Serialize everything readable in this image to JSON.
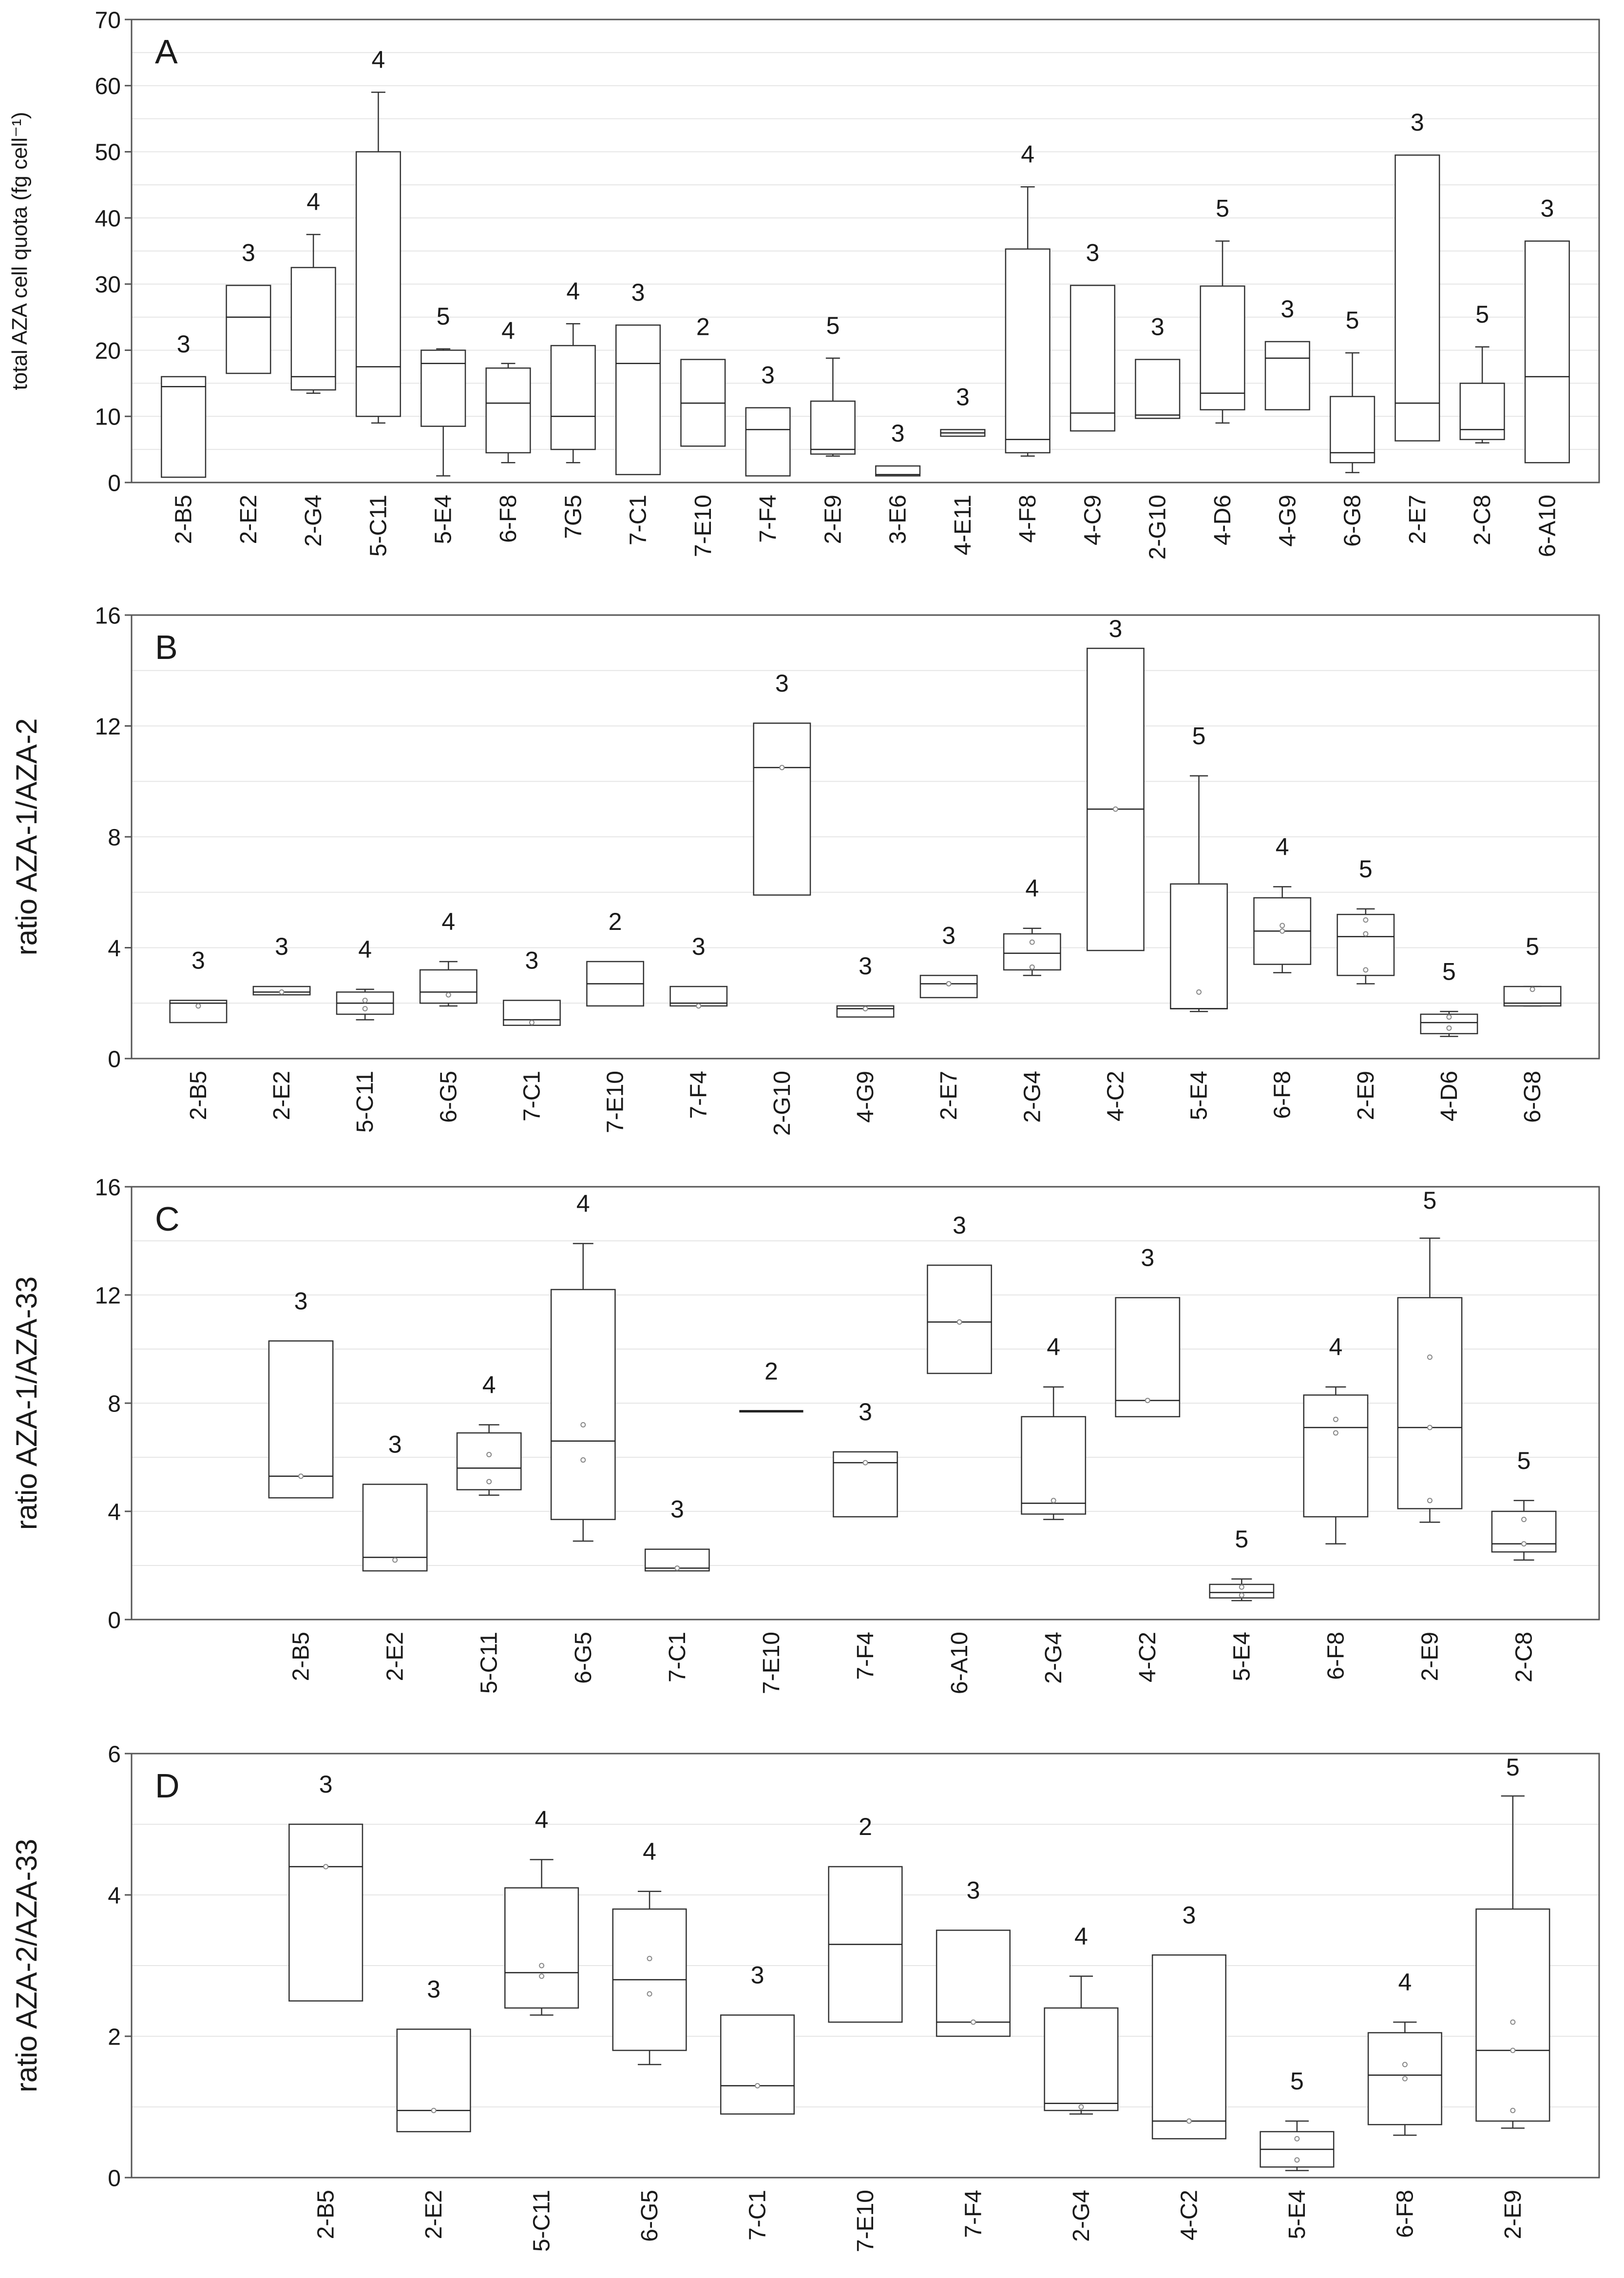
{
  "chart_data": [
    {
      "type": "box",
      "panel_label": "A",
      "ylabel": "total AZA cell quota (fg cell⁻¹)",
      "ylim": [
        0,
        70
      ],
      "yticks": [
        0,
        10,
        20,
        30,
        40,
        50,
        60,
        70
      ],
      "ytick_labels": [
        "0",
        "10",
        "20",
        "30",
        "40",
        "50",
        "60",
        "70"
      ],
      "grid": true,
      "categories": [
        "2-B5",
        "2-E2",
        "2-G4",
        "5-C11",
        "5-E4",
        "6-F8",
        "7G5",
        "7-C1",
        "7-E10",
        "7-F4",
        "2-E9",
        "3-E6",
        "4-E11",
        "4-F8",
        "4-C9",
        "2-G10",
        "4-D6",
        "4-G9",
        "6-G8",
        "2-E7",
        "2-C8",
        "6-A10"
      ],
      "n_labels": [
        "3",
        "3",
        "4",
        "4",
        "5",
        "4",
        "4",
        "3",
        "2",
        "3",
        "5",
        "3",
        "3",
        "4",
        "3",
        "3",
        "5",
        "3",
        "5",
        "3",
        "5",
        "3"
      ],
      "boxes": [
        {
          "q1": 0.8,
          "median": 14.5,
          "q3": 16,
          "wmin": null,
          "wmax": null,
          "points": []
        },
        {
          "q1": 16.5,
          "median": 25,
          "q3": 29.8,
          "wmin": null,
          "wmax": null,
          "points": []
        },
        {
          "q1": 14,
          "median": 16,
          "q3": 32.5,
          "wmin": 13.5,
          "wmax": 37.5,
          "points": []
        },
        {
          "q1": 10,
          "median": 17.5,
          "q3": 50,
          "wmin": 9,
          "wmax": 59,
          "points": []
        },
        {
          "q1": 8.5,
          "median": 18,
          "q3": 20,
          "wmin": 1,
          "wmax": 20.2,
          "points": []
        },
        {
          "q1": 4.5,
          "median": 12,
          "q3": 17.3,
          "wmin": 3,
          "wmax": 18,
          "points": []
        },
        {
          "q1": 5,
          "median": 10,
          "q3": 20.7,
          "wmin": 3,
          "wmax": 24,
          "points": []
        },
        {
          "q1": 1.2,
          "median": 18,
          "q3": 23.8,
          "wmin": null,
          "wmax": null,
          "points": []
        },
        {
          "q1": 5.5,
          "median": 12,
          "q3": 18.6,
          "wmin": null,
          "wmax": null,
          "points": []
        },
        {
          "q1": 1,
          "median": 8,
          "q3": 11.3,
          "wmin": null,
          "wmax": null,
          "points": []
        },
        {
          "q1": 4.3,
          "median": 5,
          "q3": 12.3,
          "wmin": 4,
          "wmax": 18.8,
          "points": []
        },
        {
          "q1": 1,
          "median": 1.2,
          "q3": 2.5,
          "wmin": null,
          "wmax": null,
          "points": []
        },
        {
          "q1": 7,
          "median": 7.5,
          "q3": 8,
          "wmin": null,
          "wmax": null,
          "points": []
        },
        {
          "q1": 4.5,
          "median": 6.5,
          "q3": 35.3,
          "wmin": 4,
          "wmax": 44.7,
          "points": []
        },
        {
          "q1": 7.8,
          "median": 10.5,
          "q3": 29.8,
          "wmin": null,
          "wmax": null,
          "points": []
        },
        {
          "q1": 9.7,
          "median": 10.2,
          "q3": 18.6,
          "wmin": null,
          "wmax": null,
          "points": []
        },
        {
          "q1": 11,
          "median": 13.5,
          "q3": 29.7,
          "wmin": 9,
          "wmax": 36.5,
          "points": []
        },
        {
          "q1": 11,
          "median": 18.8,
          "q3": 21.3,
          "wmin": null,
          "wmax": null,
          "points": []
        },
        {
          "q1": 3,
          "median": 4.5,
          "q3": 13,
          "wmin": 1.5,
          "wmax": 19.6,
          "points": []
        },
        {
          "q1": 6.3,
          "median": 12,
          "q3": 49.5,
          "wmin": null,
          "wmax": null,
          "points": []
        },
        {
          "q1": 6.5,
          "median": 8,
          "q3": 15,
          "wmin": 6,
          "wmax": 20.5,
          "points": []
        },
        {
          "q1": 3,
          "median": 16,
          "q3": 36.5,
          "wmin": null,
          "wmax": null,
          "points": []
        }
      ]
    },
    {
      "type": "box",
      "panel_label": "B",
      "ylabel": "ratio AZA-1/AZA-2",
      "ylim": [
        0,
        16
      ],
      "yticks": [
        0,
        4,
        8,
        12,
        16
      ],
      "ytick_labels": [
        "0",
        "4",
        "8",
        "12",
        "16"
      ],
      "grid": true,
      "categories": [
        "2-B5",
        "2-E2",
        "5-C11",
        "6-G5",
        "7-C1",
        "7-E10",
        "7-F4",
        "2-G10",
        "4-G9",
        "2-E7",
        "2-G4",
        "4-C2",
        "5-E4",
        "6-F8",
        "2-E9",
        "4-D6",
        "6-G8"
      ],
      "n_labels": [
        "3",
        "3",
        "4",
        "4",
        "3",
        "2",
        "3",
        "3",
        "3",
        "3",
        "4",
        "3",
        "5",
        "4",
        "5",
        "5",
        "5"
      ],
      "boxes": [
        {
          "q1": 1.3,
          "median": 2,
          "q3": 2.1,
          "wmin": null,
          "wmax": null,
          "points": [
            1.9
          ]
        },
        {
          "q1": 2.3,
          "median": 2.4,
          "q3": 2.6,
          "wmin": null,
          "wmax": null,
          "points": [
            2.4
          ]
        },
        {
          "q1": 1.6,
          "median": 2,
          "q3": 2.4,
          "wmin": 1.4,
          "wmax": 2.5,
          "points": [
            1.8,
            2.1
          ]
        },
        {
          "q1": 2,
          "median": 2.4,
          "q3": 3.2,
          "wmin": 1.9,
          "wmax": 3.5,
          "points": [
            2.3
          ]
        },
        {
          "q1": 1.2,
          "median": 1.4,
          "q3": 2.1,
          "wmin": null,
          "wmax": null,
          "points": [
            1.3
          ]
        },
        {
          "q1": 1.9,
          "median": 2.7,
          "q3": 3.5,
          "wmin": null,
          "wmax": null,
          "points": []
        },
        {
          "q1": 1.9,
          "median": 2,
          "q3": 2.6,
          "wmin": null,
          "wmax": null,
          "points": [
            1.9
          ]
        },
        {
          "q1": 5.9,
          "median": 10.5,
          "q3": 12.1,
          "wmin": null,
          "wmax": null,
          "points": [
            10.5
          ]
        },
        {
          "q1": 1.5,
          "median": 1.8,
          "q3": 1.9,
          "wmin": null,
          "wmax": null,
          "points": [
            1.8
          ]
        },
        {
          "q1": 2.2,
          "median": 2.7,
          "q3": 3,
          "wmin": null,
          "wmax": null,
          "points": [
            2.7
          ]
        },
        {
          "q1": 3.2,
          "median": 3.8,
          "q3": 4.5,
          "wmin": 3,
          "wmax": 4.7,
          "points": [
            3.3,
            4.2
          ]
        },
        {
          "q1": 3.9,
          "median": 9,
          "q3": 14.8,
          "wmin": null,
          "wmax": null,
          "points": [
            9
          ]
        },
        {
          "q1": 1.8,
          "median": 1.8,
          "q3": 6.3,
          "wmin": 1.7,
          "wmax": 10.2,
          "points": [
            2.4
          ]
        },
        {
          "q1": 3.4,
          "median": 4.6,
          "q3": 5.8,
          "wmin": 3.1,
          "wmax": 6.2,
          "points": [
            4.6,
            4.8
          ]
        },
        {
          "q1": 3,
          "median": 4.4,
          "q3": 5.2,
          "wmin": 2.7,
          "wmax": 5.4,
          "points": [
            3.2,
            4.5,
            5
          ]
        },
        {
          "q1": 0.9,
          "median": 1.3,
          "q3": 1.6,
          "wmin": 0.8,
          "wmax": 1.7,
          "points": [
            1.1,
            1.5
          ]
        },
        {
          "q1": 1.9,
          "median": 2,
          "q3": 2.6,
          "wmin": 1.9,
          "wmax": 2.6,
          "points": [
            2.5
          ]
        }
      ]
    },
    {
      "type": "box",
      "panel_label": "C",
      "ylabel": "ratio AZA-1/AZA-33",
      "ylim": [
        0,
        16
      ],
      "yticks": [
        0,
        4,
        8,
        12,
        16
      ],
      "ytick_labels": [
        "0",
        "4",
        "8",
        "12",
        "16"
      ],
      "grid": true,
      "categories": [
        "2-B5",
        "2-E2",
        "5-C11",
        "6-G5",
        "7-C1",
        "7-E10",
        "7-F4",
        "6-A10",
        "2-G4",
        "4-C2",
        "5-E4",
        "6-F8",
        "2-E9",
        "2-C8"
      ],
      "n_labels": [
        "3",
        "3",
        "4",
        "4",
        "3",
        "2",
        "3",
        "3",
        "4",
        "3",
        "5",
        "4",
        "5",
        "5"
      ],
      "boxes": [
        {
          "q1": 4.5,
          "median": 5.3,
          "q3": 10.3,
          "wmin": null,
          "wmax": null,
          "points": [
            5.3
          ]
        },
        {
          "q1": 1.8,
          "median": 2.3,
          "q3": 5,
          "wmin": null,
          "wmax": null,
          "points": [
            2.2
          ]
        },
        {
          "q1": 4.8,
          "median": 5.6,
          "q3": 6.9,
          "wmin": 4.6,
          "wmax": 7.2,
          "points": [
            5.1,
            6.1
          ]
        },
        {
          "q1": 3.7,
          "median": 6.6,
          "q3": 12.2,
          "wmin": 2.9,
          "wmax": 13.9,
          "points": [
            5.9,
            7.2
          ]
        },
        {
          "q1": 1.8,
          "median": 1.9,
          "q3": 2.6,
          "wmin": null,
          "wmax": null,
          "points": [
            1.9
          ]
        },
        {
          "q1": 7.7,
          "median": 7.7,
          "q3": 7.7,
          "wmin": null,
          "wmax": null,
          "points": []
        },
        {
          "q1": 3.8,
          "median": 5.8,
          "q3": 6.2,
          "wmin": null,
          "wmax": null,
          "points": [
            5.8
          ]
        },
        {
          "q1": 9.1,
          "median": 11,
          "q3": 13.1,
          "wmin": null,
          "wmax": null,
          "points": [
            11
          ]
        },
        {
          "q1": 3.9,
          "median": 4.3,
          "q3": 7.5,
          "wmin": 3.7,
          "wmax": 8.6,
          "points": [
            4.4
          ]
        },
        {
          "q1": 7.5,
          "median": 8.1,
          "q3": 11.9,
          "wmin": null,
          "wmax": null,
          "points": [
            8.1
          ]
        },
        {
          "q1": 0.8,
          "median": 1,
          "q3": 1.3,
          "wmin": 0.7,
          "wmax": 1.5,
          "points": [
            0.9,
            1.2
          ]
        },
        {
          "q1": 3.8,
          "median": 7.1,
          "q3": 8.3,
          "wmin": 2.8,
          "wmax": 8.6,
          "points": [
            6.9,
            7.4
          ]
        },
        {
          "q1": 4.1,
          "median": 7.1,
          "q3": 11.9,
          "wmin": 3.6,
          "wmax": 14.1,
          "points": [
            4.4,
            7.1,
            9.7
          ]
        },
        {
          "q1": 2.5,
          "median": 2.8,
          "q3": 4,
          "wmin": 2.2,
          "wmax": 4.4,
          "points": [
            2.8,
            3.7
          ]
        }
      ]
    },
    {
      "type": "box",
      "panel_label": "D",
      "ylabel": "ratio AZA-2/AZA-33",
      "ylim": [
        0,
        6
      ],
      "yticks": [
        0,
        2,
        4,
        6
      ],
      "ytick_labels": [
        "0",
        "2",
        "4",
        "6"
      ],
      "grid": true,
      "categories": [
        "2-B5",
        "2-E2",
        "5-C11",
        "6-G5",
        "7-C1",
        "7-E10",
        "7-F4",
        "2-G4",
        "4-C2",
        "5-E4",
        "6-F8",
        "2-E9"
      ],
      "n_labels": [
        "3",
        "3",
        "4",
        "4",
        "3",
        "2",
        "3",
        "4",
        "3",
        "5",
        "4",
        "5"
      ],
      "boxes": [
        {
          "q1": 2.5,
          "median": 4.4,
          "q3": 5,
          "wmin": null,
          "wmax": null,
          "points": [
            4.4
          ]
        },
        {
          "q1": 0.65,
          "median": 0.95,
          "q3": 2.1,
          "wmin": null,
          "wmax": null,
          "points": [
            0.95
          ]
        },
        {
          "q1": 2.4,
          "median": 2.9,
          "q3": 4.1,
          "wmin": 2.3,
          "wmax": 4.5,
          "points": [
            2.85,
            3
          ]
        },
        {
          "q1": 1.8,
          "median": 2.8,
          "q3": 3.8,
          "wmin": 1.6,
          "wmax": 4.05,
          "points": [
            2.6,
            3.1
          ]
        },
        {
          "q1": 0.9,
          "median": 1.3,
          "q3": 2.3,
          "wmin": null,
          "wmax": null,
          "points": [
            1.3
          ]
        },
        {
          "q1": 2.2,
          "median": 3.3,
          "q3": 4.4,
          "wmin": null,
          "wmax": null,
          "points": []
        },
        {
          "q1": 2,
          "median": 2.2,
          "q3": 3.5,
          "wmin": null,
          "wmax": null,
          "points": [
            2.2
          ]
        },
        {
          "q1": 0.95,
          "median": 1.05,
          "q3": 2.4,
          "wmin": 0.9,
          "wmax": 2.85,
          "points": [
            1
          ]
        },
        {
          "q1": 0.55,
          "median": 0.8,
          "q3": 3.15,
          "wmin": null,
          "wmax": null,
          "points": [
            0.8
          ]
        },
        {
          "q1": 0.15,
          "median": 0.4,
          "q3": 0.65,
          "wmin": 0.1,
          "wmax": 0.8,
          "points": [
            0.25,
            0.55
          ]
        },
        {
          "q1": 0.75,
          "median": 1.45,
          "q3": 2.05,
          "wmin": 0.6,
          "wmax": 2.2,
          "points": [
            1.4,
            1.6
          ]
        },
        {
          "q1": 0.8,
          "median": 1.8,
          "q3": 3.8,
          "wmin": 0.7,
          "wmax": 5.4,
          "points": [
            0.95,
            1.8,
            2.2
          ]
        }
      ]
    }
  ]
}
